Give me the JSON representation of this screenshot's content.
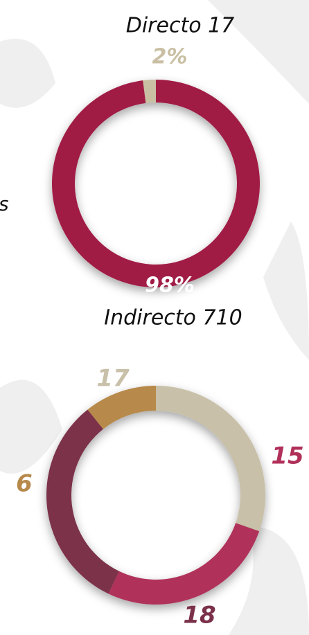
{
  "chart_data": [
    {
      "type": "donut",
      "categories": [
        "Directo 17",
        "Indirecto 710"
      ],
      "values": [
        2,
        98
      ],
      "value_labels": [
        "2%",
        "98%"
      ],
      "colors": [
        "#c9bfa3",
        "#a11a45"
      ],
      "annotations": [
        "s"
      ]
    },
    {
      "type": "donut",
      "values": [
        17,
        15,
        18,
        6
      ],
      "colors": [
        "#c8c0a8",
        "#b0305a",
        "#7b3049",
        "#b78a4b"
      ]
    }
  ]
}
